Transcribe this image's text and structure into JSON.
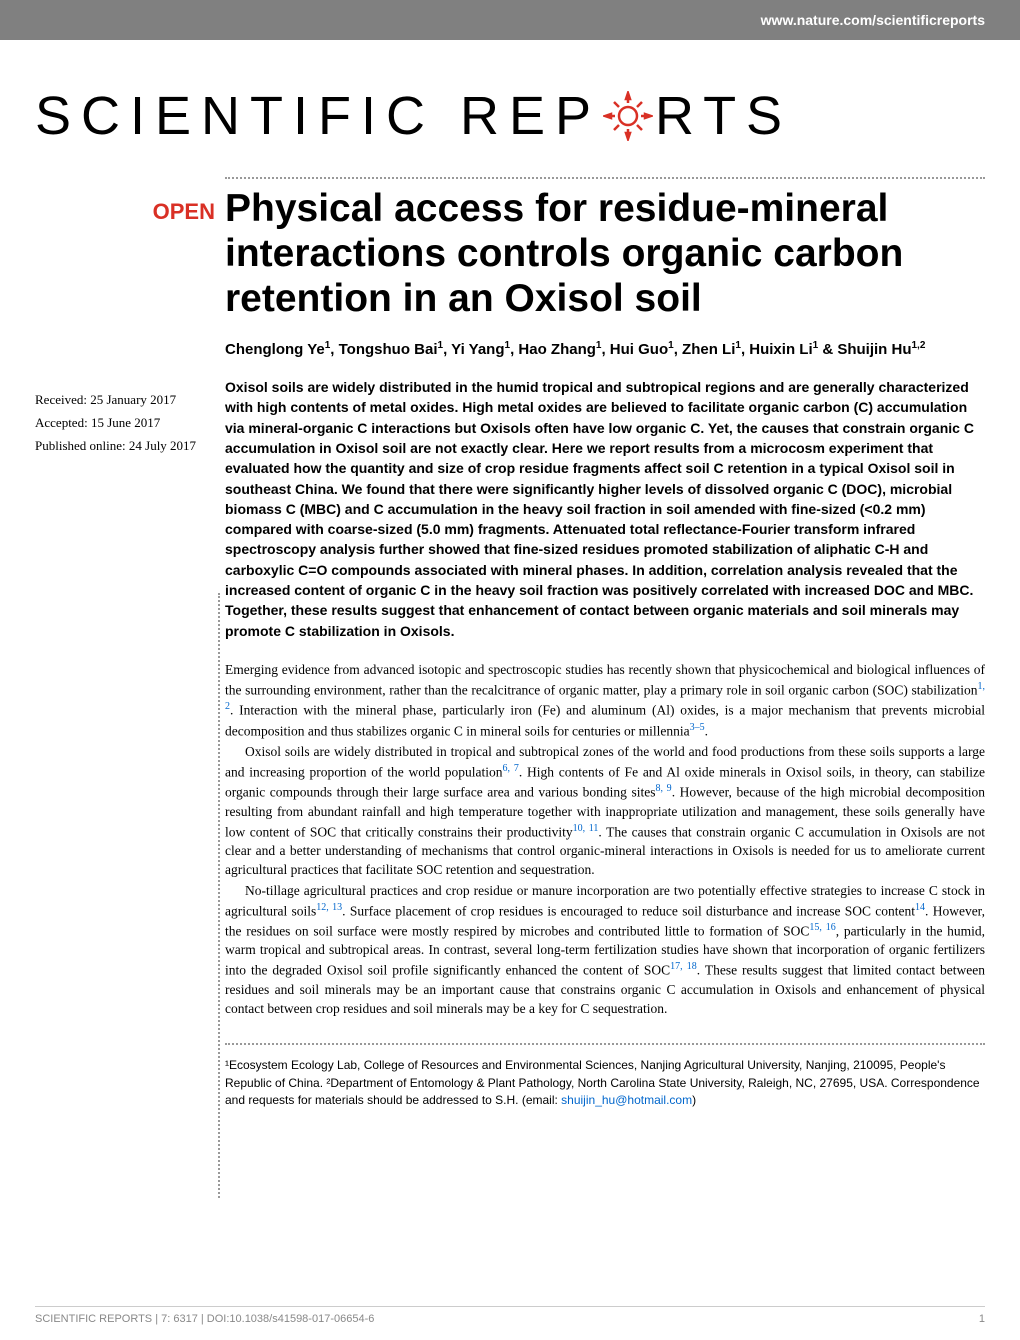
{
  "header": {
    "url": "www.nature.com/scientificreports"
  },
  "journal": {
    "name_part1": "SCIENTIFIC REP",
    "name_part2": "RTS"
  },
  "badge": {
    "open": "OPEN"
  },
  "dates": {
    "received": "Received: 25 January 2017",
    "accepted": "Accepted: 15 June 2017",
    "published": "Published online: 24 July 2017"
  },
  "article": {
    "title": "Physical access for residue-mineral interactions controls organic carbon retention in an Oxisol soil",
    "authors_html": "Chenglong Ye<sup>1</sup>, Tongshuo Bai<sup>1</sup>, Yi Yang<sup>1</sup>, Hao Zhang<sup>1</sup>, Hui Guo<sup>1</sup>, Zhen Li<sup>1</sup>, Huixin Li<sup>1</sup> & Shuijin Hu<sup>1,2</sup>",
    "abstract": "Oxisol soils are widely distributed in the humid tropical and subtropical regions and are generally characterized with high contents of metal oxides. High metal oxides are believed to facilitate organic carbon (C) accumulation via mineral-organic C interactions but Oxisols often have low organic C. Yet, the causes that constrain organic C accumulation in Oxisol soil are not exactly clear. Here we report results from a microcosm experiment that evaluated how the quantity and size of crop residue fragments affect soil C retention in a typical Oxisol soil in southeast China. We found that there were significantly higher levels of dissolved organic C (DOC), microbial biomass C (MBC) and C accumulation in the heavy soil fraction in soil amended with fine-sized (<0.2 mm) compared with coarse-sized (5.0 mm) fragments. Attenuated total reflectance-Fourier transform infrared spectroscopy analysis further showed that fine-sized residues promoted stabilization of aliphatic C-H and carboxylic C=O compounds associated with mineral phases. In addition, correlation analysis revealed that the increased content of organic C in the heavy soil fraction was positively correlated with increased DOC and MBC. Together, these results suggest that enhancement of contact between organic materials and soil minerals may promote C stabilization in Oxisols."
  },
  "body": {
    "p1": "Emerging evidence from advanced isotopic and spectroscopic studies has recently shown that physicochemical and biological influences of the surrounding environment, rather than the recalcitrance of organic matter, play a primary role in soil organic carbon (SOC) stabilization",
    "p1_ref1": "1, 2",
    "p1_cont": ". Interaction with the mineral phase, particularly iron (Fe) and aluminum (Al) oxides, is a major mechanism that prevents microbial decomposition and thus stabilizes organic C in mineral soils for centuries or millennia",
    "p1_ref2": "3–5",
    "p1_end": ".",
    "p2": "Oxisol soils are widely distributed in tropical and subtropical zones of the world and food productions from these soils supports a large and increasing proportion of the world population",
    "p2_ref1": "6, 7",
    "p2_cont": ". High contents of Fe and Al oxide minerals in Oxisol soils, in theory, can stabilize organic compounds through their large surface area and various bonding sites",
    "p2_ref2": "8, 9",
    "p2_cont2": ". However, because of the high microbial decomposition resulting from abundant rainfall and high temperature together with inappropriate utilization and management, these soils generally have low content of SOC that critically constrains their productivity",
    "p2_ref3": "10, 11",
    "p2_end": ". The causes that constrain organic C accumulation in Oxisols are not clear and a better understanding of mechanisms that control organic-mineral interactions in Oxisols is needed for us to ameliorate current agricultural practices that facilitate SOC retention and sequestration.",
    "p3": "No-tillage agricultural practices and crop residue or manure incorporation are two potentially effective strategies to increase C stock in agricultural soils",
    "p3_ref1": "12, 13",
    "p3_cont": ". Surface placement of crop residues is encouraged to reduce soil disturbance and increase SOC content",
    "p3_ref2": "14",
    "p3_cont2": ". However, the residues on soil surface were mostly respired by microbes and contributed little to formation of SOC",
    "p3_ref3": "15, 16",
    "p3_cont3": ", particularly in the humid, warm tropical and subtropical areas. In contrast, several long-term fertilization studies have shown that incorporation of organic fertilizers into the degraded Oxisol soil profile significantly enhanced the content of SOC",
    "p3_ref4": "17, 18",
    "p3_end": ". These results suggest that limited contact between residues and soil minerals may be an important cause that constrains organic C accumulation in Oxisols and enhancement of physical contact between crop residues and soil minerals may be a key for C sequestration."
  },
  "affiliations": {
    "text_pre": "¹Ecosystem Ecology Lab, College of Resources and Environmental Sciences, Nanjing Agricultural University, Nanjing, 210095, People's Republic of China. ²Department of Entomology & Plant Pathology, North Carolina State University, Raleigh, NC, 27695, USA. Correspondence and requests for materials should be addressed to S.H. (email: ",
    "email": "shuijin_hu@hotmail.com",
    "text_post": ")"
  },
  "footer": {
    "citation": "SCIENTIFIC REPORTS | 7: 6317 | DOI:10.1038/s41598-017-06654-6",
    "page": "1"
  },
  "colors": {
    "header_bg": "#808080",
    "open_red": "#d93025",
    "link_blue": "#0066cc",
    "footer_gray": "#888888"
  }
}
